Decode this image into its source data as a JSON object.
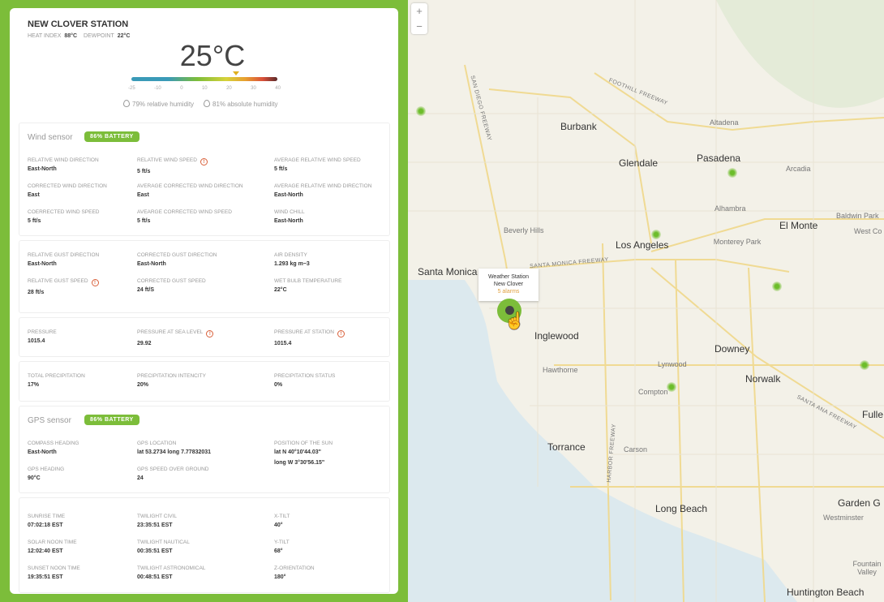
{
  "station": {
    "name": "NEW CLOVER STATION",
    "heat_index_label": "HEAT INDEX",
    "heat_index": "88°C",
    "dewpoint_label": "DEWPOINT",
    "dewpoint": "22°C",
    "temperature": "25°C",
    "temperature_value": 25,
    "scale_ticks": [
      "-25",
      "-10",
      "0",
      "10",
      "20",
      "30",
      "40"
    ],
    "relative_humidity": "79% relative humidity",
    "absolute_humidity": "81% absolute humidity"
  },
  "wind": {
    "title": "Wind sensor",
    "battery": "86% BATTERY",
    "fields": [
      {
        "label": "RELATIVE WIND DIRECTION",
        "value": "East-North"
      },
      {
        "label": "RELATIVE WIND SPEED",
        "value": "5 ft/s",
        "warn": true
      },
      {
        "label": "AVERAGE RELATIVE WIND SPEED",
        "value": "5 ft/s"
      },
      {
        "label": "CORRECTED WIND DIRECTION",
        "value": "East"
      },
      {
        "label": "AVERAGE CORRECTED WIND DIRECTION",
        "value": "East"
      },
      {
        "label": "AVERAGE RELATIVE WIND DIRECTION",
        "value": "East-North"
      },
      {
        "label": "COERRECTED WIND SPEED",
        "value": "5 ft/s"
      },
      {
        "label": "AVEARGE CORRECTED WIND SPEED",
        "value": "5 ft/s"
      },
      {
        "label": "WIND CHILL",
        "value": "East-North"
      }
    ]
  },
  "gust": {
    "fields": [
      {
        "label": "RELATIVE GUST DIRECTION",
        "value": "East-North"
      },
      {
        "label": "CORRECTED GUST DIRECTION",
        "value": "East-North"
      },
      {
        "label": "AIR DENSITY",
        "value": "1.293 kg m−3"
      },
      {
        "label": "RELATIVE GUST SPEED",
        "value": "28 ft/s",
        "warn": true
      },
      {
        "label": "CORRECTED GUST SPEED",
        "value": "24 ft/S"
      },
      {
        "label": "WET BULB TEMPERATURE",
        "value": "22°C"
      }
    ]
  },
  "pressure": {
    "fields": [
      {
        "label": "PRESSURE",
        "value": "1015.4"
      },
      {
        "label": "PRESSURE AT SEA LEVEL",
        "value": "29.92",
        "warn": true
      },
      {
        "label": "PRESSURE AT STATION",
        "value": "1015.4",
        "warn": true
      }
    ]
  },
  "precip": {
    "fields": [
      {
        "label": "TOTAL PRECIPITATION",
        "value": "17%"
      },
      {
        "label": "PRECIPITATION INTENCITY",
        "value": "20%"
      },
      {
        "label": "PRECIPITATION STATUS",
        "value": "0%"
      }
    ]
  },
  "gps": {
    "title": "GPS sensor",
    "battery": "86% BATTERY",
    "fields": [
      {
        "label": "COMPASS HEADING",
        "value": "East-North"
      },
      {
        "label": "GPS LOCATION",
        "value": "lat 53.2734 long 7.77832031"
      },
      {
        "label": "POSITION OF THE SUN",
        "value": "lat N 40°10'44.03\"",
        "value2": "long W 3°30'56.15\""
      },
      {
        "label": "GPS HEADING",
        "value": "90°C"
      },
      {
        "label": "GPS SPEED OVER GROUND",
        "value": "24"
      }
    ]
  },
  "sun": {
    "fields": [
      {
        "label": "SUNRISE TIME",
        "value": "07:02:18 EST"
      },
      {
        "label": "TWILIGHT CIVIL",
        "value": "23:35:51 EST"
      },
      {
        "label": "X-TILT",
        "value": "40°"
      },
      {
        "label": "SOLAR NOON TIME",
        "value": "12:02:40 EST"
      },
      {
        "label": "TWILIGHT NAUTICAL",
        "value": "00:35:51 EST"
      },
      {
        "label": "Y-TILT",
        "value": "68°"
      },
      {
        "label": "SUNSET NOON TIME",
        "value": "19:35:51 EST"
      },
      {
        "label": "TWILIGHT ASTRONOMICAL",
        "value": "00:48:51 EST"
      },
      {
        "label": "Z-ORIENTATION",
        "value": "180°"
      }
    ]
  },
  "map": {
    "zoom_in": "+",
    "zoom_out": "−",
    "tooltip": {
      "line1": "Weather Station",
      "line2": "New Clover",
      "alarms": "5 alarms"
    },
    "cities": [
      "Burbank",
      "Glendale",
      "Pasadena",
      "Altadena",
      "Arcadia",
      "El Monte",
      "Baldwin Park",
      "West Co",
      "Alhambra",
      "Monterey Park",
      "Beverly Hills",
      "Los Angeles",
      "Santa Monica",
      "Inglewood",
      "Downey",
      "Hawthorne",
      "Lynwood",
      "Norwalk",
      "Compton",
      "Torrance",
      "Carson",
      "Long Beach",
      "Garden G",
      "Westminster",
      "Fulle",
      "Fountain Valley",
      "Huntington Beach"
    ],
    "freeways": [
      "FOOTHILL FREEWAY",
      "SAN DIEGO FREEWAY",
      "SANTA MONICA FREEWAY",
      "HARBOR FREEWAY",
      "SANTA ANA FREEWAY"
    ]
  },
  "colors": {
    "accent": "#7cbd3a",
    "warning": "#d9603a"
  }
}
